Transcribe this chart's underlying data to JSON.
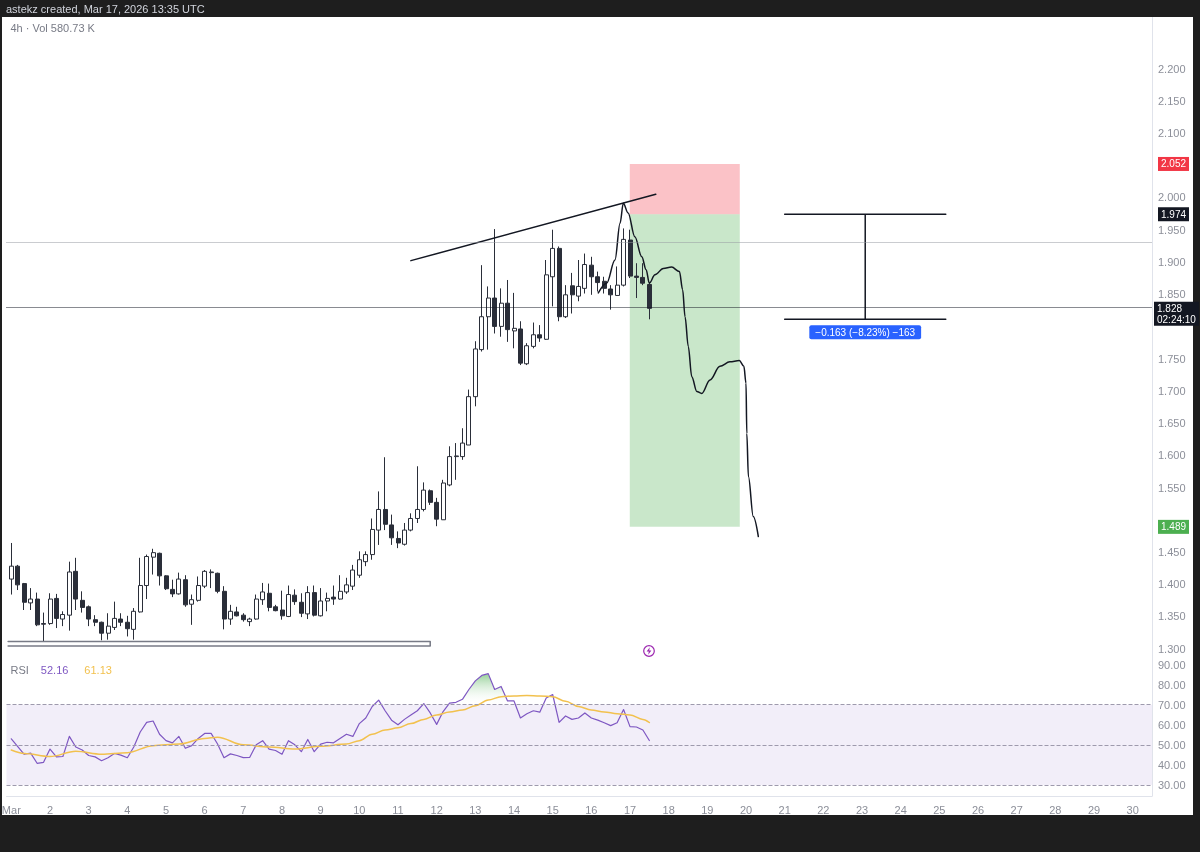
{
  "chart_data": [
    {
      "type": "candlestick",
      "title": "4h · Vol 580.73 K",
      "annotations": [
        "astekz created, Mar 17, 2026 13:35 UTC",
        {
          "text": "−0.163 (−8.23%) −163",
          "x": "2026-03-23T02:00",
          "y": 1.811
        }
      ],
      "x": [
        "2026-03-01T00:00",
        "2026-03-01T04:00",
        "2026-03-01T08:00",
        "2026-03-01T12:00",
        "2026-03-01T16:00",
        "2026-03-01T20:00",
        "2026-03-02T00:00",
        "2026-03-02T04:00",
        "2026-03-02T08:00",
        "2026-03-02T12:00",
        "2026-03-02T16:00",
        "2026-03-02T20:00",
        "2026-03-03T00:00",
        "2026-03-03T04:00",
        "2026-03-03T08:00",
        "2026-03-03T12:00",
        "2026-03-03T16:00",
        "2026-03-03T20:00",
        "2026-03-04T00:00",
        "2026-03-04T04:00",
        "2026-03-04T08:00",
        "2026-03-04T12:00",
        "2026-03-04T16:00",
        "2026-03-04T20:00",
        "2026-03-05T00:00",
        "2026-03-05T04:00",
        "2026-03-05T08:00",
        "2026-03-05T12:00",
        "2026-03-05T16:00",
        "2026-03-05T20:00",
        "2026-03-06T00:00",
        "2026-03-06T04:00",
        "2026-03-06T08:00",
        "2026-03-06T12:00",
        "2026-03-06T16:00",
        "2026-03-06T20:00",
        "2026-03-07T00:00",
        "2026-03-07T04:00",
        "2026-03-07T08:00",
        "2026-03-07T12:00",
        "2026-03-07T16:00",
        "2026-03-07T20:00",
        "2026-03-08T00:00",
        "2026-03-08T04:00",
        "2026-03-08T08:00",
        "2026-03-08T12:00",
        "2026-03-08T16:00",
        "2026-03-08T20:00",
        "2026-03-09T00:00",
        "2026-03-09T04:00",
        "2026-03-09T08:00",
        "2026-03-09T12:00",
        "2026-03-09T16:00",
        "2026-03-09T20:00",
        "2026-03-10T00:00",
        "2026-03-10T04:00",
        "2026-03-10T08:00",
        "2026-03-10T12:00",
        "2026-03-10T16:00",
        "2026-03-10T20:00",
        "2026-03-11T00:00",
        "2026-03-11T04:00",
        "2026-03-11T08:00",
        "2026-03-11T12:00",
        "2026-03-11T16:00",
        "2026-03-11T20:00",
        "2026-03-12T00:00",
        "2026-03-12T04:00",
        "2026-03-12T08:00",
        "2026-03-12T12:00",
        "2026-03-12T16:00",
        "2026-03-12T20:00",
        "2026-03-13T00:00",
        "2026-03-13T04:00",
        "2026-03-13T08:00",
        "2026-03-13T12:00",
        "2026-03-13T16:00",
        "2026-03-13T20:00",
        "2026-03-14T00:00",
        "2026-03-14T04:00",
        "2026-03-14T08:00",
        "2026-03-14T12:00",
        "2026-03-14T16:00",
        "2026-03-14T20:00",
        "2026-03-15T00:00",
        "2026-03-15T04:00",
        "2026-03-15T08:00",
        "2026-03-15T12:00",
        "2026-03-15T16:00",
        "2026-03-15T20:00",
        "2026-03-16T00:00",
        "2026-03-16T04:00",
        "2026-03-16T08:00",
        "2026-03-16T12:00",
        "2026-03-16T16:00",
        "2026-03-16T20:00",
        "2026-03-17T00:00",
        "2026-03-17T04:00",
        "2026-03-17T08:00",
        "2026-03-17T12:00"
      ],
      "ohlc": [
        [
          1.408,
          1.464,
          1.384,
          1.428
        ],
        [
          1.428,
          1.43,
          1.391,
          1.399
        ],
        [
          1.401,
          1.402,
          1.36,
          1.372
        ],
        [
          1.371,
          1.394,
          1.36,
          1.377
        ],
        [
          1.377,
          1.387,
          1.335,
          1.337
        ],
        [
          1.339,
          1.356,
          1.311,
          1.338
        ],
        [
          1.339,
          1.386,
          1.337,
          1.377
        ],
        [
          1.378,
          1.385,
          1.332,
          1.347
        ],
        [
          1.346,
          1.358,
          1.335,
          1.353
        ],
        [
          1.352,
          1.435,
          1.328,
          1.419
        ],
        [
          1.42,
          1.441,
          1.36,
          1.377
        ],
        [
          1.375,
          1.389,
          1.356,
          1.364
        ],
        [
          1.365,
          1.367,
          1.335,
          1.346
        ],
        [
          1.345,
          1.352,
          1.335,
          1.341
        ],
        [
          1.341,
          1.342,
          1.313,
          1.324
        ],
        [
          1.324,
          1.355,
          1.314,
          1.335
        ],
        [
          1.333,
          1.373,
          1.329,
          1.347
        ],
        [
          1.346,
          1.355,
          1.335,
          1.341
        ],
        [
          1.341,
          1.351,
          1.319,
          1.331
        ],
        [
          1.33,
          1.363,
          1.314,
          1.358
        ],
        [
          1.357,
          1.441,
          1.356,
          1.398
        ],
        [
          1.398,
          1.446,
          1.377,
          1.443
        ],
        [
          1.442,
          1.455,
          1.415,
          1.449
        ],
        [
          1.448,
          1.449,
          1.398,
          1.413
        ],
        [
          1.413,
          1.414,
          1.391,
          1.393
        ],
        [
          1.392,
          1.407,
          1.38,
          1.385
        ],
        [
          1.385,
          1.418,
          1.384,
          1.408
        ],
        [
          1.407,
          1.414,
          1.365,
          1.368
        ],
        [
          1.369,
          1.384,
          1.337,
          1.376
        ],
        [
          1.375,
          1.412,
          1.373,
          1.398
        ],
        [
          1.397,
          1.422,
          1.394,
          1.42
        ],
        [
          1.418,
          1.423,
          1.394,
          1.419
        ],
        [
          1.417,
          1.418,
          1.386,
          1.389
        ],
        [
          1.389,
          1.397,
          1.33,
          1.346
        ],
        [
          1.346,
          1.368,
          1.337,
          1.358
        ],
        [
          1.357,
          1.365,
          1.35,
          1.351
        ],
        [
          1.352,
          1.355,
          1.342,
          1.345
        ],
        [
          1.342,
          1.348,
          1.335,
          1.346
        ],
        [
          1.346,
          1.384,
          1.345,
          1.377
        ],
        [
          1.376,
          1.402,
          1.368,
          1.388
        ],
        [
          1.386,
          1.401,
          1.358,
          1.364
        ],
        [
          1.365,
          1.368,
          1.358,
          1.359
        ],
        [
          1.36,
          1.39,
          1.345,
          1.351
        ],
        [
          1.35,
          1.398,
          1.349,
          1.384
        ],
        [
          1.383,
          1.392,
          1.368,
          1.373
        ],
        [
          1.372,
          1.386,
          1.349,
          1.355
        ],
        [
          1.354,
          1.397,
          1.346,
          1.387
        ],
        [
          1.387,
          1.398,
          1.35,
          1.352
        ],
        [
          1.351,
          1.394,
          1.35,
          1.374
        ],
        [
          1.374,
          1.387,
          1.358,
          1.378
        ],
        [
          1.38,
          1.398,
          1.368,
          1.377
        ],
        [
          1.377,
          1.414,
          1.376,
          1.389
        ],
        [
          1.388,
          1.41,
          1.385,
          1.399
        ],
        [
          1.397,
          1.43,
          1.391,
          1.422
        ],
        [
          1.414,
          1.451,
          1.41,
          1.438
        ],
        [
          1.435,
          1.451,
          1.428,
          1.446
        ],
        [
          1.446,
          1.502,
          1.438,
          1.485
        ],
        [
          1.484,
          1.544,
          1.461,
          1.516
        ],
        [
          1.516,
          1.597,
          1.484,
          1.493
        ],
        [
          1.492,
          1.508,
          1.461,
          1.472
        ],
        [
          1.471,
          1.482,
          1.456,
          1.464
        ],
        [
          1.462,
          1.495,
          1.46,
          1.484
        ],
        [
          1.484,
          1.51,
          1.482,
          1.502
        ],
        [
          1.502,
          1.583,
          1.495,
          1.516
        ],
        [
          1.516,
          1.558,
          1.513,
          1.546
        ],
        [
          1.545,
          1.547,
          1.523,
          1.527
        ],
        [
          1.527,
          1.534,
          1.49,
          1.501
        ],
        [
          1.5,
          1.562,
          1.5,
          1.557
        ],
        [
          1.554,
          1.614,
          1.552,
          1.598
        ],
        [
          1.598,
          1.619,
          1.562,
          1.599
        ],
        [
          1.598,
          1.642,
          1.593,
          1.619
        ],
        [
          1.616,
          1.702,
          1.616,
          1.691
        ],
        [
          1.691,
          1.777,
          1.676,
          1.765
        ],
        [
          1.764,
          1.895,
          1.761,
          1.815
        ],
        [
          1.815,
          1.862,
          1.764,
          1.844
        ],
        [
          1.844,
          1.951,
          1.789,
          1.8
        ],
        [
          1.8,
          1.859,
          1.784,
          1.836
        ],
        [
          1.836,
          1.872,
          1.776,
          1.795
        ],
        [
          1.793,
          1.852,
          1.766,
          1.797
        ],
        [
          1.796,
          1.808,
          1.74,
          1.743
        ],
        [
          1.742,
          1.774,
          1.74,
          1.77
        ],
        [
          1.769,
          1.806,
          1.766,
          1.787
        ],
        [
          1.787,
          1.802,
          1.776,
          1.782
        ],
        [
          1.78,
          1.903,
          1.779,
          1.88
        ],
        [
          1.877,
          1.95,
          1.831,
          1.921
        ],
        [
          1.921,
          1.924,
          1.808,
          1.815
        ],
        [
          1.815,
          1.864,
          1.813,
          1.849
        ],
        [
          1.863,
          1.883,
          1.82,
          1.849
        ],
        [
          1.847,
          1.903,
          1.839,
          1.862
        ],
        [
          1.859,
          1.913,
          1.851,
          1.896
        ],
        [
          1.895,
          1.908,
          1.849,
          1.877
        ],
        [
          1.877,
          1.885,
          1.854,
          1.868
        ],
        [
          1.87,
          1.877,
          1.851,
          1.859
        ],
        [
          1.858,
          1.864,
          1.826,
          1.849
        ],
        [
          1.848,
          1.893,
          1.848,
          1.864
        ],
        [
          1.864,
          1.952,
          1.862,
          1.935
        ],
        [
          1.934,
          1.95,
          1.875,
          1.878
        ],
        [
          1.878,
          1.898,
          1.844,
          1.876
        ],
        [
          1.876,
          1.898,
          1.864,
          1.867
        ],
        [
          1.865,
          1.867,
          1.811,
          1.828
        ]
      ],
      "color": "#2a2e39",
      "series": [
        {
          "type": "line",
          "x": [
            "2026-03-11T08:00",
            "2026-03-17T16:00"
          ],
          "values": [
            1.902,
            2.005
          ],
          "color": "#131722"
        },
        {
          "type": "line",
          "x": [
            "2026-03-16T04:20",
            "2026-03-16T09:30",
            "2026-03-16T14:40",
            "2026-03-16T17:50",
            "2026-03-16T19:50",
            "2026-03-16T22:50",
            "2026-03-17T03:00",
            "2026-03-17T07:20",
            "2026-03-17T10:00",
            "2026-03-17T12:00",
            "2026-03-17T15:30",
            "2026-03-17T20:40",
            "2026-03-18T01:50",
            "2026-03-18T06:40",
            "2026-03-18T08:40",
            "2026-03-18T10:10",
            "2026-03-18T12:10",
            "2026-03-18T14:20",
            "2026-03-18T17:30",
            "2026-03-18T20:30",
            "2026-03-19T01:40",
            "2026-03-19T07:50",
            "2026-03-19T14:00",
            "2026-03-19T19:50",
            "2026-03-19T22:40",
            "2026-03-20T00:00",
            "2026-03-20T00:30",
            "2026-03-20T01:30",
            "2026-03-20T04:30",
            "2026-03-20T07:40"
          ],
          "values": [
            1.852,
            1.867,
            1.903,
            1.96,
            1.991,
            1.976,
            1.939,
            1.908,
            1.888,
            1.867,
            1.88,
            1.89,
            1.892,
            1.885,
            1.857,
            1.815,
            1.769,
            1.722,
            1.699,
            1.696,
            1.717,
            1.738,
            1.745,
            1.747,
            1.738,
            1.712,
            1.634,
            1.567,
            1.505,
            1.474
          ],
          "color": "#131722"
        },
        {
          "type": "line",
          "x": [
            "2026-03-21T00:00",
            "2026-03-25T04:00",
            "2026-03-23T02:00",
            "2026-03-23T02:00",
            "2026-03-21T00:00",
            "2026-03-25T04:00"
          ],
          "values": [
            1.974,
            1.974,
            1.974,
            1.811,
            1.811,
            1.811
          ],
          "color": "#131722"
        },
        {
          "type": "line",
          "x": [
            "2026-02-28T22:00",
            "2026-03-11T20:00",
            "2026-03-11T20:00",
            "2026-02-28T22:00"
          ],
          "values": [
            1.311,
            1.311,
            1.304,
            1.304
          ],
          "color": "#787b86"
        },
        {
          "type": "bar",
          "x": [
            "2026-03-18T10:00"
          ],
          "base": [
            1.974
          ],
          "values": [
            0.078
          ],
          "color": "#f23645"
        },
        {
          "type": "bar",
          "x": [
            "2026-03-18T10:00"
          ],
          "base": [
            1.489
          ],
          "values": [
            0.485
          ],
          "color": "#4caf50"
        }
      ],
      "ref_lines": [
        {
          "axis": "y",
          "value": 1.934,
          "color": "#9598a1",
          "line_style": "dotted"
        },
        {
          "axis": "y",
          "value": 1.828,
          "label": "1.828\n02:24:10",
          "color": "#131722",
          "line_style": "dotted"
        }
      ],
      "xlim": [
        "2026-02-28T21:00",
        "2026-03-30T12:00"
      ],
      "ylim": [
        1.284,
        2.28
      ],
      "yticks": [
        {
          "value": 1.3,
          "label": "1.300"
        },
        {
          "value": 1.35,
          "label": "1.350"
        },
        {
          "value": 1.4,
          "label": "1.400"
        },
        {
          "value": 1.45,
          "label": "1.450"
        },
        {
          "value": 1.489,
          "label": "1.489"
        },
        {
          "value": 1.55,
          "label": "1.550"
        },
        {
          "value": 1.6,
          "label": "1.600"
        },
        {
          "value": 1.65,
          "label": "1.650"
        },
        {
          "value": 1.7,
          "label": "1.700"
        },
        {
          "value": 1.75,
          "label": "1.750"
        },
        {
          "value": 1.85,
          "label": "1.850"
        },
        {
          "value": 1.9,
          "label": "1.900"
        },
        {
          "value": 1.95,
          "label": "1.950"
        },
        {
          "value": 1.974,
          "label": "1.974"
        },
        {
          "value": 2.0,
          "label": "2.000"
        },
        {
          "value": 2.052,
          "label": "2.052"
        },
        {
          "value": 2.1,
          "label": "2.100"
        },
        {
          "value": 2.15,
          "label": "2.150"
        },
        {
          "value": 2.2,
          "label": "2.200"
        }
      ],
      "tick_labels": "y"
    },
    {
      "type": "line",
      "title": "RSI",
      "x": [
        "2026-03-01T00:00",
        "2026-03-01T04:00",
        "2026-03-01T08:00",
        "2026-03-01T12:00",
        "2026-03-01T16:00",
        "2026-03-01T20:00",
        "2026-03-02T00:00",
        "2026-03-02T04:00",
        "2026-03-02T08:00",
        "2026-03-02T12:00",
        "2026-03-02T16:00",
        "2026-03-02T20:00",
        "2026-03-03T00:00",
        "2026-03-03T04:00",
        "2026-03-03T08:00",
        "2026-03-03T12:00",
        "2026-03-03T16:00",
        "2026-03-03T20:00",
        "2026-03-04T00:00",
        "2026-03-04T04:00",
        "2026-03-04T08:00",
        "2026-03-04T12:00",
        "2026-03-04T16:00",
        "2026-03-04T20:00",
        "2026-03-05T00:00",
        "2026-03-05T04:00",
        "2026-03-05T08:00",
        "2026-03-05T12:00",
        "2026-03-05T16:00",
        "2026-03-05T20:00",
        "2026-03-06T00:00",
        "2026-03-06T04:00",
        "2026-03-06T08:00",
        "2026-03-06T12:00",
        "2026-03-06T16:00",
        "2026-03-06T20:00",
        "2026-03-07T00:00",
        "2026-03-07T04:00",
        "2026-03-07T08:00",
        "2026-03-07T12:00",
        "2026-03-07T16:00",
        "2026-03-07T20:00",
        "2026-03-08T00:00",
        "2026-03-08T04:00",
        "2026-03-08T08:00",
        "2026-03-08T12:00",
        "2026-03-08T16:00",
        "2026-03-08T20:00",
        "2026-03-09T00:00",
        "2026-03-09T04:00",
        "2026-03-09T08:00",
        "2026-03-09T12:00",
        "2026-03-09T16:00",
        "2026-03-09T20:00",
        "2026-03-10T00:00",
        "2026-03-10T04:00",
        "2026-03-10T08:00",
        "2026-03-10T12:00",
        "2026-03-10T16:00",
        "2026-03-10T20:00",
        "2026-03-11T00:00",
        "2026-03-11T04:00",
        "2026-03-11T08:00",
        "2026-03-11T12:00",
        "2026-03-11T16:00",
        "2026-03-11T20:00",
        "2026-03-12T00:00",
        "2026-03-12T04:00",
        "2026-03-12T08:00",
        "2026-03-12T12:00",
        "2026-03-12T16:00",
        "2026-03-12T20:00",
        "2026-03-13T00:00",
        "2026-03-13T04:00",
        "2026-03-13T08:00",
        "2026-03-13T12:00",
        "2026-03-13T16:00",
        "2026-03-13T20:00",
        "2026-03-14T00:00",
        "2026-03-14T04:00",
        "2026-03-14T08:00",
        "2026-03-14T12:00",
        "2026-03-14T16:00",
        "2026-03-14T20:00",
        "2026-03-15T00:00",
        "2026-03-15T04:00",
        "2026-03-15T08:00",
        "2026-03-15T12:00",
        "2026-03-15T16:00",
        "2026-03-15T20:00",
        "2026-03-16T00:00",
        "2026-03-16T04:00",
        "2026-03-16T08:00",
        "2026-03-16T12:00",
        "2026-03-16T16:00",
        "2026-03-16T20:00",
        "2026-03-17T00:00",
        "2026-03-17T04:00",
        "2026-03-17T08:00",
        "2026-03-17T12:00"
      ],
      "series": [
        {
          "name": "52.16",
          "color": "#7e57c2",
          "values": [
            53.0,
            49.1,
            45.3,
            45.9,
            40.8,
            41.3,
            47.9,
            44.0,
            44.2,
            54.2,
            48.9,
            47.4,
            44.7,
            44.0,
            42.1,
            43.6,
            45.7,
            44.9,
            43.6,
            48.9,
            56.4,
            61.2,
            61.9,
            55.3,
            52.1,
            51.0,
            54.2,
            48.3,
            49.6,
            53.2,
            55.7,
            55.7,
            50.4,
            43.6,
            45.5,
            44.7,
            43.6,
            43.8,
            50.0,
            52.1,
            47.9,
            47.2,
            45.3,
            52.1,
            50.0,
            46.6,
            52.7,
            46.6,
            50.4,
            51.3,
            51.0,
            53.2,
            55.3,
            54.2,
            60.6,
            63.4,
            69.1,
            72.3,
            67.0,
            62.3,
            60.0,
            62.7,
            64.9,
            67.0,
            70.6,
            65.9,
            60.2,
            66.6,
            70.8,
            71.2,
            72.7,
            77.6,
            81.9,
            84.6,
            85.5,
            77.6,
            79.1,
            71.9,
            71.9,
            63.4,
            65.5,
            67.0,
            66.3,
            73.4,
            75.1,
            61.2,
            64.4,
            62.7,
            63.4,
            65.9,
            63.4,
            62.3,
            61.0,
            59.6,
            61.0,
            67.6,
            59.1,
            58.9,
            57.4,
            52.16
          ]
        },
        {
          "name": "61.13",
          "color": "#f2c14e",
          "x": [
            "2026-03-01T00:00",
            "2026-03-01T08:00",
            "2026-03-02T00:00",
            "2026-03-02T16:00",
            "2026-03-03T08:00",
            "2026-03-04T00:00",
            "2026-03-04T16:00",
            "2026-03-05T08:00",
            "2026-03-06T00:00",
            "2026-03-06T08:00",
            "2026-03-07T00:00",
            "2026-03-07T16:00",
            "2026-03-08T08:00",
            "2026-03-09T00:00",
            "2026-03-09T16:00",
            "2026-03-10T00:00",
            "2026-03-10T08:00",
            "2026-03-10T16:00",
            "2026-03-11T00:00",
            "2026-03-11T08:00",
            "2026-03-11T16:00",
            "2026-03-12T00:00",
            "2026-03-12T08:00",
            "2026-03-12T16:00",
            "2026-03-13T00:00",
            "2026-03-13T08:00",
            "2026-03-13T16:00",
            "2026-03-14T00:00",
            "2026-03-14T08:00",
            "2026-03-14T16:00",
            "2026-03-15T00:00",
            "2026-03-15T08:00",
            "2026-03-15T16:00",
            "2026-03-16T00:00",
            "2026-03-16T08:00",
            "2026-03-16T16:00",
            "2026-03-17T00:00",
            "2026-03-17T08:00",
            "2026-03-17T12:00"
          ],
          "values": [
            47.4,
            45.7,
            44.2,
            46.8,
            45.3,
            46.1,
            49.6,
            50.4,
            53.2,
            53.8,
            50.0,
            48.9,
            47.9,
            49.3,
            50.4,
            52.1,
            55.3,
            57.4,
            58.5,
            60.6,
            62.7,
            64.9,
            66.4,
            67.4,
            69.5,
            72.3,
            74.0,
            74.4,
            74.6,
            74.4,
            74.0,
            71.7,
            69.1,
            67.4,
            66.4,
            65.5,
            64.9,
            62.7,
            61.13
          ]
        },
        {
          "type": "area",
          "x": [
            "2026-03-12T07:10",
            "2026-03-12T08:00",
            "2026-03-12T12:00",
            "2026-03-12T16:00",
            "2026-03-12T20:00",
            "2026-03-13T00:00",
            "2026-03-13T04:00",
            "2026-03-13T08:00",
            "2026-03-13T12:00",
            "2026-03-13T16:00",
            "2026-03-13T20:00",
            "2026-03-14T00:00",
            "2026-03-14T00:50"
          ],
          "values": [
            70,
            70.8,
            71.2,
            72.7,
            77.6,
            81.9,
            84.6,
            85.5,
            77.6,
            79.1,
            71.9,
            71.9,
            70
          ],
          "color": "#4caf50"
        }
      ],
      "bands": [
        {
          "axis": "y",
          "from": 30,
          "to": 70,
          "color": "#f2eef9"
        }
      ],
      "ref_lines": [
        {
          "axis": "y",
          "value": 70,
          "color": "#9e9aad",
          "line_style": "dashed"
        },
        {
          "axis": "y",
          "value": 50,
          "color": "#9e9aad",
          "line_style": "dashed"
        },
        {
          "axis": "y",
          "value": 30,
          "color": "#9e9aad",
          "line_style": "dashed"
        }
      ],
      "xlim": [
        "2026-02-28T21:00",
        "2026-03-30T12:00"
      ],
      "ylim": [
        24.5,
        92.8
      ],
      "xticks": [
        {
          "value": "2026-03-01",
          "label": "Mar"
        },
        {
          "value": "2026-03-02",
          "label": "2"
        },
        {
          "value": "2026-03-03",
          "label": "3"
        },
        {
          "value": "2026-03-04",
          "label": "4"
        },
        {
          "value": "2026-03-05",
          "label": "5"
        },
        {
          "value": "2026-03-06",
          "label": "6"
        },
        {
          "value": "2026-03-07",
          "label": "7"
        },
        {
          "value": "2026-03-08",
          "label": "8"
        },
        {
          "value": "2026-03-09",
          "label": "9"
        },
        {
          "value": "2026-03-10",
          "label": "10"
        },
        {
          "value": "2026-03-11",
          "label": "11"
        },
        {
          "value": "2026-03-12",
          "label": "12"
        },
        {
          "value": "2026-03-13",
          "label": "13"
        },
        {
          "value": "2026-03-14",
          "label": "14"
        },
        {
          "value": "2026-03-15",
          "label": "15"
        },
        {
          "value": "2026-03-16",
          "label": "16"
        },
        {
          "value": "2026-03-17",
          "label": "17"
        },
        {
          "value": "2026-03-18",
          "label": "18"
        },
        {
          "value": "2026-03-19",
          "label": "19"
        },
        {
          "value": "2026-03-20",
          "label": "20"
        },
        {
          "value": "2026-03-21",
          "label": "21"
        },
        {
          "value": "2026-03-22",
          "label": "22"
        },
        {
          "value": "2026-03-23",
          "label": "23"
        },
        {
          "value": "2026-03-24",
          "label": "24"
        },
        {
          "value": "2026-03-25",
          "label": "25"
        },
        {
          "value": "2026-03-26",
          "label": "26"
        },
        {
          "value": "2026-03-27",
          "label": "27"
        },
        {
          "value": "2026-03-28",
          "label": "28"
        },
        {
          "value": "2026-03-29",
          "label": "29"
        },
        {
          "value": "2026-03-30",
          "label": "30"
        }
      ],
      "yticks": [
        {
          "value": 30,
          "label": "30.00"
        },
        {
          "value": 40,
          "label": "40.00"
        },
        {
          "value": 50,
          "label": "50.00"
        },
        {
          "value": 60,
          "label": "60.00"
        },
        {
          "value": 70,
          "label": "70.00"
        },
        {
          "value": 80,
          "label": "80.00"
        },
        {
          "value": 90,
          "label": "90.00"
        }
      ],
      "legend": "top left"
    }
  ]
}
